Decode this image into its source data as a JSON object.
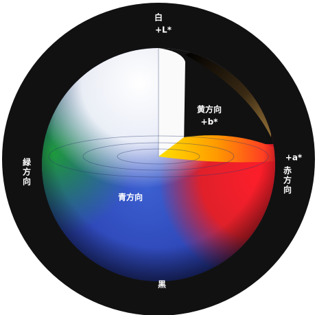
{
  "labels": {
    "white": "白",
    "l_axis": "+L*",
    "yellow": "黄方向",
    "b_axis": "+b*",
    "a_axis": "+a*",
    "red": "赤方向",
    "green": "緑方向",
    "blue": "青方向",
    "black": "黒"
  }
}
